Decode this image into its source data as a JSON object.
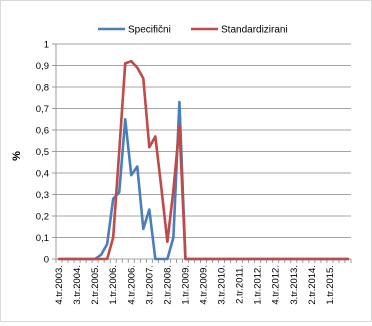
{
  "chart_data": {
    "type": "line",
    "title": "",
    "xlabel": "",
    "ylabel": "%",
    "ylim": [
      0,
      1
    ],
    "yticks": [
      0,
      0.1,
      0.2,
      0.3,
      0.4,
      0.5,
      0.6,
      0.7,
      0.8,
      0.9,
      1
    ],
    "ytick_labels": [
      "0",
      "0,1",
      "0,2",
      "0,3",
      "0,4",
      "0,5",
      "0,6",
      "0,7",
      "0,8",
      "0,9",
      "1"
    ],
    "grid": true,
    "legend_position": "top",
    "x_labels": [
      "4.tr.2003.",
      "3.tr.2004.",
      "2.tr.2005.",
      "1.tr.2006.",
      "4.tr.2006.",
      "3.tr.2007.",
      "2.tr.2008.",
      "1.tr.2009.",
      "4.tr.2009.",
      "3.tr.2010.",
      "2.tr.2011.",
      "1.tr.2012.",
      "4.tr.2012.",
      "3.tr.2013.",
      "2.tr.2014.",
      "1.tr.2015."
    ],
    "categories": [
      "4.tr.2003.",
      "1.tr.2004.",
      "2.tr.2004.",
      "3.tr.2004.",
      "4.tr.2004.",
      "1.tr.2005.",
      "2.tr.2005.",
      "3.tr.2005.",
      "4.tr.2005.",
      "1.tr.2006.",
      "2.tr.2006.",
      "3.tr.2006.",
      "4.tr.2006.",
      "1.tr.2007.",
      "2.tr.2007.",
      "3.tr.2007.",
      "4.tr.2007.",
      "1.tr.2008.",
      "2.tr.2008.",
      "3.tr.2008.",
      "4.tr.2008.",
      "1.tr.2009.",
      "2.tr.2009.",
      "3.tr.2009.",
      "4.tr.2009.",
      "1.tr.2010.",
      "2.tr.2010.",
      "3.tr.2010.",
      "4.tr.2010.",
      "1.tr.2011.",
      "2.tr.2011.",
      "3.tr.2011.",
      "4.tr.2011.",
      "1.tr.2012.",
      "2.tr.2012.",
      "3.tr.2012.",
      "4.tr.2012.",
      "1.tr.2013.",
      "2.tr.2013.",
      "3.tr.2013.",
      "4.tr.2013.",
      "1.tr.2014.",
      "2.tr.2014.",
      "3.tr.2014.",
      "4.tr.2014.",
      "1.tr.2015.",
      "2.tr.2015.",
      "3.tr.2015.",
      "4.tr.2015."
    ],
    "series": [
      {
        "name": "Specifični",
        "color": "#4a7ebb",
        "values": [
          0,
          0,
          0,
          0,
          0,
          0,
          0,
          0.02,
          0.07,
          0.28,
          0.31,
          0.65,
          0.39,
          0.43,
          0.14,
          0.23,
          0,
          0,
          0,
          0.1,
          0.73,
          0,
          0,
          0,
          0,
          0,
          0,
          0,
          0,
          0,
          0,
          0,
          0,
          0,
          0,
          0,
          0,
          0,
          0,
          0,
          0,
          0,
          0,
          0,
          0,
          0,
          0,
          0,
          0
        ]
      },
      {
        "name": "Standardizirani",
        "color": "#be4b48",
        "values": [
          0,
          0,
          0,
          0,
          0,
          0,
          0,
          0,
          0,
          0.1,
          0.5,
          0.91,
          0.92,
          0.89,
          0.84,
          0.52,
          0.57,
          0.33,
          0.08,
          0.32,
          0.62,
          0,
          0,
          0,
          0,
          0,
          0,
          0,
          0,
          0,
          0,
          0,
          0,
          0,
          0,
          0,
          0,
          0,
          0,
          0,
          0,
          0,
          0,
          0,
          0,
          0,
          0,
          0,
          0
        ]
      }
    ]
  }
}
